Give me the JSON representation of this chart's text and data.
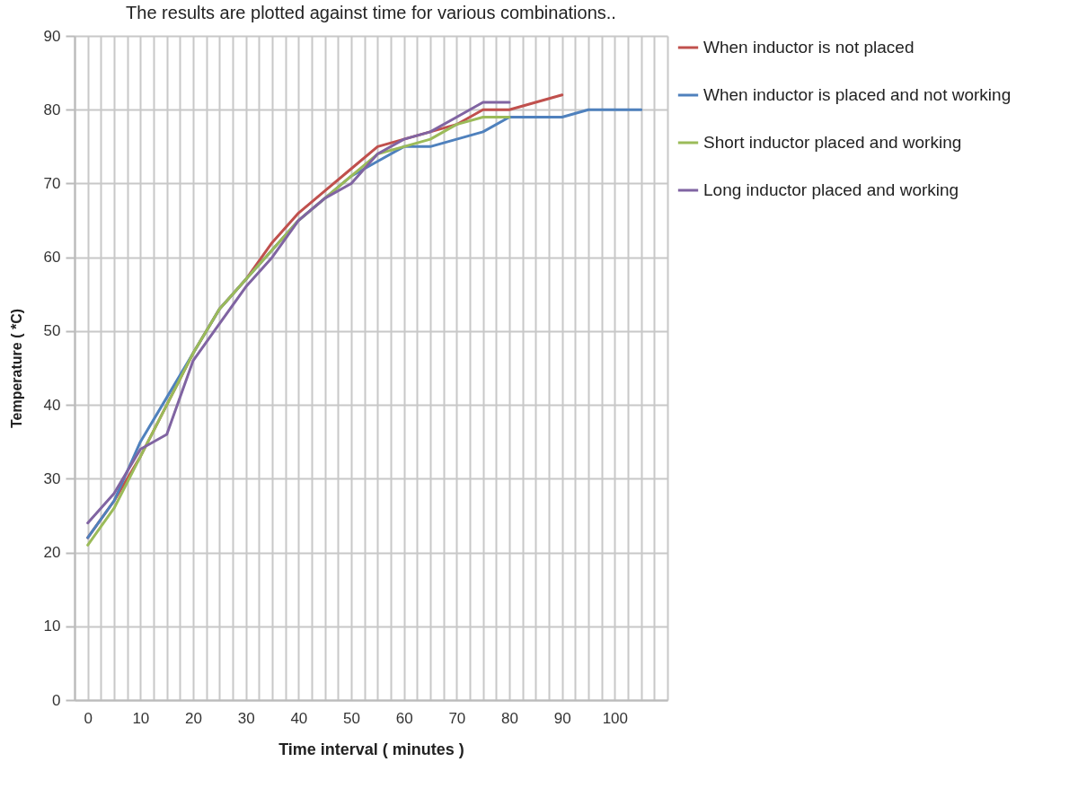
{
  "chart_data": {
    "type": "line",
    "title": "The results are plotted against time for various combinations..",
    "xlabel": "Time interval ( minutes )",
    "ylabel": "Temperature ( *C)",
    "x": [
      0,
      5,
      10,
      15,
      20,
      25,
      30,
      35,
      40,
      45,
      50,
      55,
      60,
      65,
      70,
      75,
      80,
      85,
      90,
      95,
      100,
      105
    ],
    "xlim": [
      -2.5,
      110
    ],
    "xticks": [
      {
        "value": -2.5,
        "label": null
      },
      0,
      {
        "value": 2.5,
        "label": null
      },
      {
        "value": 5,
        "label": null
      },
      {
        "value": 7.5,
        "label": null
      },
      10,
      {
        "value": 12.5,
        "label": null
      },
      {
        "value": 15,
        "label": null
      },
      {
        "value": 17.5,
        "label": null
      },
      20,
      {
        "value": 22.5,
        "label": null
      },
      {
        "value": 25,
        "label": null
      },
      {
        "value": 27.5,
        "label": null
      },
      30,
      {
        "value": 32.5,
        "label": null
      },
      {
        "value": 35,
        "label": null
      },
      {
        "value": 37.5,
        "label": null
      },
      40,
      {
        "value": 42.5,
        "label": null
      },
      {
        "value": 45,
        "label": null
      },
      {
        "value": 47.5,
        "label": null
      },
      50,
      {
        "value": 52.5,
        "label": null
      },
      {
        "value": 55,
        "label": null
      },
      {
        "value": 57.5,
        "label": null
      },
      60,
      {
        "value": 62.5,
        "label": null
      },
      {
        "value": 65,
        "label": null
      },
      {
        "value": 67.5,
        "label": null
      },
      70,
      {
        "value": 72.5,
        "label": null
      },
      {
        "value": 75,
        "label": null
      },
      {
        "value": 77.5,
        "label": null
      },
      80,
      {
        "value": 82.5,
        "label": null
      },
      {
        "value": 85,
        "label": null
      },
      {
        "value": 87.5,
        "label": null
      },
      90,
      {
        "value": 92.5,
        "label": null
      },
      {
        "value": 95,
        "label": null
      },
      {
        "value": 97.5,
        "label": null
      },
      100,
      {
        "value": 102.5,
        "label": null
      },
      {
        "value": 105,
        "label": null
      },
      {
        "value": 107.5,
        "label": null
      },
      {
        "value": 110,
        "label": null
      }
    ],
    "ylim": [
      0,
      90
    ],
    "yticks": [
      0,
      10,
      20,
      30,
      40,
      50,
      60,
      70,
      80,
      90
    ],
    "grid": true,
    "legend": "right",
    "marker": "none",
    "line_style": "solid",
    "series": [
      {
        "name": " When inductor is not placed",
        "color": "#c0504d",
        "values": [
          22,
          27,
          33,
          40,
          47,
          53,
          57,
          62,
          66,
          69,
          72,
          75,
          76,
          77,
          78,
          80,
          80,
          81,
          82,
          null,
          null,
          null
        ]
      },
      {
        "name": "When inductor is placed and not working",
        "color": "#4f81bd",
        "values": [
          22,
          27,
          35,
          41,
          47,
          53,
          57,
          61,
          65,
          68,
          71,
          73,
          75,
          75,
          76,
          77,
          79,
          79,
          79,
          80,
          80,
          80
        ]
      },
      {
        "name": "Short inductor placed and working",
        "color": "#9bbb59",
        "values": [
          21,
          26,
          33,
          40,
          47,
          53,
          57,
          61,
          65,
          68,
          71,
          74,
          75,
          76,
          78,
          79,
          79,
          null,
          null,
          null,
          null,
          null
        ]
      },
      {
        "name": "Long inductor placed and working",
        "color": "#8064a2",
        "values": [
          24,
          28,
          34,
          36,
          46,
          51,
          56,
          60,
          65,
          68,
          70,
          74,
          76,
          77,
          79,
          81,
          81,
          null,
          null,
          null,
          null,
          null
        ]
      }
    ]
  }
}
